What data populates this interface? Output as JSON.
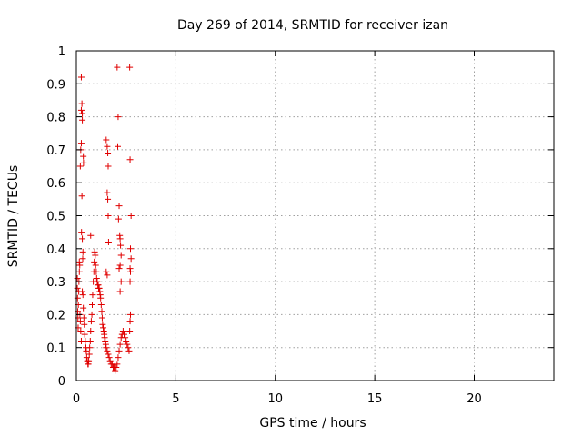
{
  "chart_data": {
    "type": "scatter",
    "title": "Day 269 of 2014, SRMTID for receiver izan",
    "xlabel": "GPS time / hours",
    "ylabel": "SRMTID / TECUs",
    "xlim": [
      0,
      24
    ],
    "ylim": [
      0,
      1
    ],
    "xticks": [
      0,
      5,
      10,
      15,
      20
    ],
    "xtick_labels": [
      "0",
      "5",
      "10",
      "15",
      "20"
    ],
    "yticks": [
      0,
      0.1,
      0.2,
      0.3,
      0.4,
      0.5,
      0.6,
      0.7,
      0.8,
      0.9,
      1
    ],
    "ytick_labels": [
      "0",
      "0.1",
      "0.2",
      "0.3",
      "0.4",
      "0.5",
      "0.6",
      "0.7",
      "0.8",
      "0.9",
      "1"
    ],
    "grid": true,
    "marker": "+",
    "colors": {
      "series": "#e00000",
      "grid": "#a0a0a0",
      "frame": "#000000"
    },
    "series": [
      {
        "name": "SRMTID",
        "points": [
          [
            0.05,
            0.31
          ],
          [
            0.05,
            0.28
          ],
          [
            0.06,
            0.25
          ],
          [
            0.07,
            0.21
          ],
          [
            0.08,
            0.19
          ],
          [
            0.09,
            0.16
          ],
          [
            0.1,
            0.23
          ],
          [
            0.12,
            0.27
          ],
          [
            0.13,
            0.3
          ],
          [
            0.15,
            0.33
          ],
          [
            0.17,
            0.35
          ],
          [
            0.18,
            0.2
          ],
          [
            0.2,
            0.18
          ],
          [
            0.22,
            0.15
          ],
          [
            0.25,
            0.12
          ],
          [
            0.15,
            0.36
          ],
          [
            0.2,
            0.65
          ],
          [
            0.22,
            0.7
          ],
          [
            0.25,
            0.72
          ],
          [
            0.25,
            0.82
          ],
          [
            0.25,
            0.92
          ],
          [
            0.28,
            0.84
          ],
          [
            0.3,
            0.81
          ],
          [
            0.3,
            0.79
          ],
          [
            0.28,
            0.56
          ],
          [
            0.26,
            0.45
          ],
          [
            0.3,
            0.43
          ],
          [
            0.32,
            0.37
          ],
          [
            0.33,
            0.39
          ],
          [
            0.35,
            0.68
          ],
          [
            0.36,
            0.66
          ],
          [
            0.3,
            0.27
          ],
          [
            0.33,
            0.26
          ],
          [
            0.35,
            0.22
          ],
          [
            0.38,
            0.19
          ],
          [
            0.4,
            0.17
          ],
          [
            0.42,
            0.14
          ],
          [
            0.45,
            0.12
          ],
          [
            0.48,
            0.1
          ],
          [
            0.5,
            0.09
          ],
          [
            0.52,
            0.07
          ],
          [
            0.55,
            0.06
          ],
          [
            0.58,
            0.05
          ],
          [
            0.6,
            0.05
          ],
          [
            0.62,
            0.06
          ],
          [
            0.65,
            0.08
          ],
          [
            0.67,
            0.1
          ],
          [
            0.7,
            0.12
          ],
          [
            0.72,
            0.15
          ],
          [
            0.75,
            0.18
          ],
          [
            0.78,
            0.2
          ],
          [
            0.8,
            0.23
          ],
          [
            0.82,
            0.26
          ],
          [
            0.85,
            0.3
          ],
          [
            0.88,
            0.33
          ],
          [
            0.9,
            0.36
          ],
          [
            0.92,
            0.39
          ],
          [
            0.95,
            0.38
          ],
          [
            0.97,
            0.35
          ],
          [
            1.0,
            0.33
          ],
          [
            1.02,
            0.31
          ],
          [
            1.05,
            0.3
          ],
          [
            1.08,
            0.29
          ],
          [
            1.1,
            0.29
          ],
          [
            1.12,
            0.28
          ],
          [
            1.15,
            0.28
          ],
          [
            1.18,
            0.27
          ],
          [
            1.2,
            0.26
          ],
          [
            1.22,
            0.25
          ],
          [
            1.25,
            0.23
          ],
          [
            1.28,
            0.21
          ],
          [
            1.3,
            0.19
          ],
          [
            1.32,
            0.17
          ],
          [
            1.35,
            0.16
          ],
          [
            1.38,
            0.15
          ],
          [
            1.4,
            0.14
          ],
          [
            1.42,
            0.13
          ],
          [
            1.45,
            0.12
          ],
          [
            1.48,
            0.11
          ],
          [
            1.5,
            0.1
          ],
          [
            1.55,
            0.09
          ],
          [
            1.6,
            0.08
          ],
          [
            1.65,
            0.07
          ],
          [
            1.7,
            0.06
          ],
          [
            1.75,
            0.05
          ],
          [
            1.8,
            0.05
          ],
          [
            1.85,
            0.04
          ],
          [
            1.9,
            0.04
          ],
          [
            1.95,
            0.03
          ],
          [
            2.0,
            0.04
          ],
          [
            2.05,
            0.05
          ],
          [
            2.1,
            0.07
          ],
          [
            2.15,
            0.09
          ],
          [
            2.2,
            0.11
          ],
          [
            2.25,
            0.13
          ],
          [
            2.3,
            0.14
          ],
          [
            2.35,
            0.15
          ],
          [
            2.4,
            0.14
          ],
          [
            2.45,
            0.13
          ],
          [
            2.5,
            0.12
          ],
          [
            2.55,
            0.11
          ],
          [
            2.6,
            0.1
          ],
          [
            2.65,
            0.09
          ],
          [
            0.72,
            0.44
          ],
          [
            1.5,
            0.73
          ],
          [
            1.55,
            0.71
          ],
          [
            1.58,
            0.69
          ],
          [
            1.6,
            0.65
          ],
          [
            1.55,
            0.57
          ],
          [
            1.58,
            0.55
          ],
          [
            1.6,
            0.5
          ],
          [
            1.62,
            0.42
          ],
          [
            1.5,
            0.33
          ],
          [
            1.55,
            0.32
          ],
          [
            2.05,
            0.95
          ],
          [
            2.1,
            0.8
          ],
          [
            2.08,
            0.71
          ],
          [
            2.15,
            0.53
          ],
          [
            2.12,
            0.49
          ],
          [
            2.18,
            0.44
          ],
          [
            2.2,
            0.43
          ],
          [
            2.22,
            0.41
          ],
          [
            2.25,
            0.38
          ],
          [
            2.2,
            0.35
          ],
          [
            2.15,
            0.34
          ],
          [
            2.25,
            0.3
          ],
          [
            2.2,
            0.27
          ],
          [
            2.68,
            0.95
          ],
          [
            2.7,
            0.67
          ],
          [
            2.75,
            0.5
          ],
          [
            2.72,
            0.4
          ],
          [
            2.75,
            0.37
          ],
          [
            2.7,
            0.34
          ],
          [
            2.72,
            0.33
          ],
          [
            2.7,
            0.3
          ],
          [
            2.72,
            0.2
          ],
          [
            2.7,
            0.18
          ],
          [
            2.68,
            0.15
          ]
        ]
      }
    ]
  }
}
